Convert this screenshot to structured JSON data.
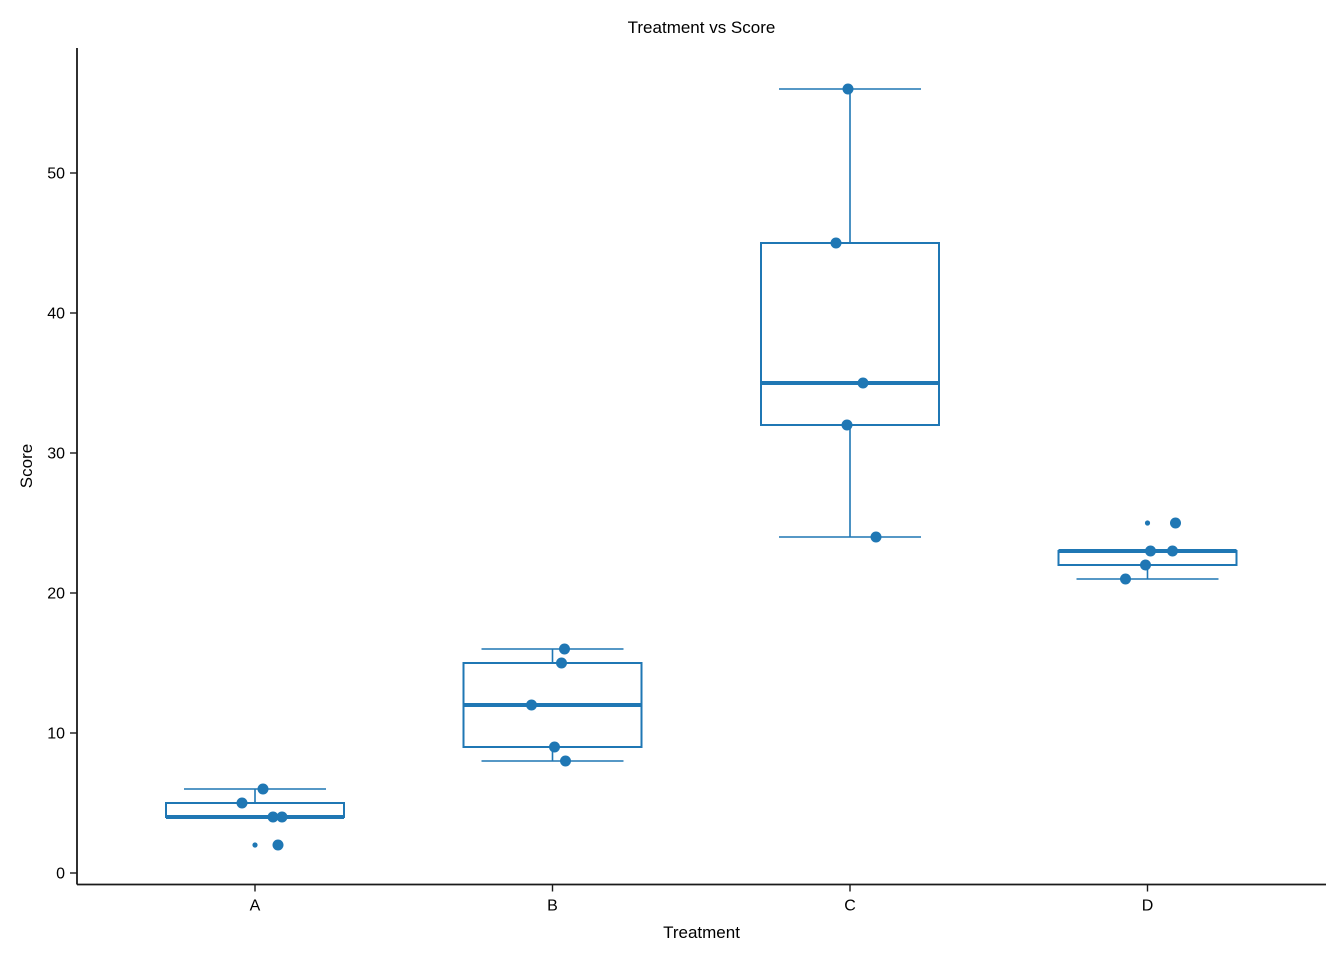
{
  "figure": {
    "title": "Treatment vs Score",
    "xlabel": "Treatment",
    "ylabel": "Score"
  },
  "chart_data": {
    "type": "box",
    "title": "Treatment vs Score",
    "xlabel": "Treatment",
    "ylabel": "Score",
    "categories": [
      "A",
      "B",
      "C",
      "D"
    ],
    "yticks": [
      0,
      10,
      20,
      30,
      40,
      50
    ],
    "ylim": [
      -0.9,
      58.9
    ],
    "grid": false,
    "legend": "none",
    "groups": [
      {
        "label": "A",
        "values": [
          2,
          4,
          4,
          5,
          6
        ],
        "q1": 4,
        "median": 4,
        "q3": 5,
        "whisker_low": 4,
        "whisker_high": 6,
        "outliers": [
          2
        ],
        "points": [
          {
            "v": 6,
            "dx": 8
          },
          {
            "v": 5,
            "dx": -13
          },
          {
            "v": 4,
            "dx": 18
          },
          {
            "v": 4,
            "dx": 27
          },
          {
            "v": 2,
            "dx": 23
          }
        ]
      },
      {
        "label": "B",
        "values": [
          8,
          9,
          12,
          15,
          16
        ],
        "q1": 9,
        "median": 12,
        "q3": 15,
        "whisker_low": 8,
        "whisker_high": 16,
        "outliers": [],
        "points": [
          {
            "v": 16,
            "dx": 12
          },
          {
            "v": 15,
            "dx": 9
          },
          {
            "v": 12,
            "dx": -21
          },
          {
            "v": 9,
            "dx": 2
          },
          {
            "v": 8,
            "dx": 13
          }
        ]
      },
      {
        "label": "C",
        "values": [
          24,
          32,
          35,
          45,
          56
        ],
        "q1": 32,
        "median": 35,
        "q3": 45,
        "whisker_low": 24,
        "whisker_high": 56,
        "outliers": [],
        "points": [
          {
            "v": 56,
            "dx": -2
          },
          {
            "v": 45,
            "dx": -14
          },
          {
            "v": 35,
            "dx": 13
          },
          {
            "v": 32,
            "dx": -3
          },
          {
            "v": 24,
            "dx": 26
          }
        ]
      },
      {
        "label": "D",
        "values": [
          21,
          22,
          23,
          23,
          25
        ],
        "q1": 22,
        "median": 23,
        "q3": 23,
        "whisker_low": 21,
        "whisker_high": 23,
        "outliers": [
          25
        ],
        "points": [
          {
            "v": 25,
            "dx": 28
          },
          {
            "v": 23,
            "dx": 3
          },
          {
            "v": 23,
            "dx": 25
          },
          {
            "v": 22,
            "dx": -2
          },
          {
            "v": 21,
            "dx": -22
          }
        ]
      }
    ],
    "colors": {
      "box": "#1f77b4",
      "point": "#1f77b4",
      "axis": "#1a1a1a",
      "text": "#000000"
    }
  }
}
